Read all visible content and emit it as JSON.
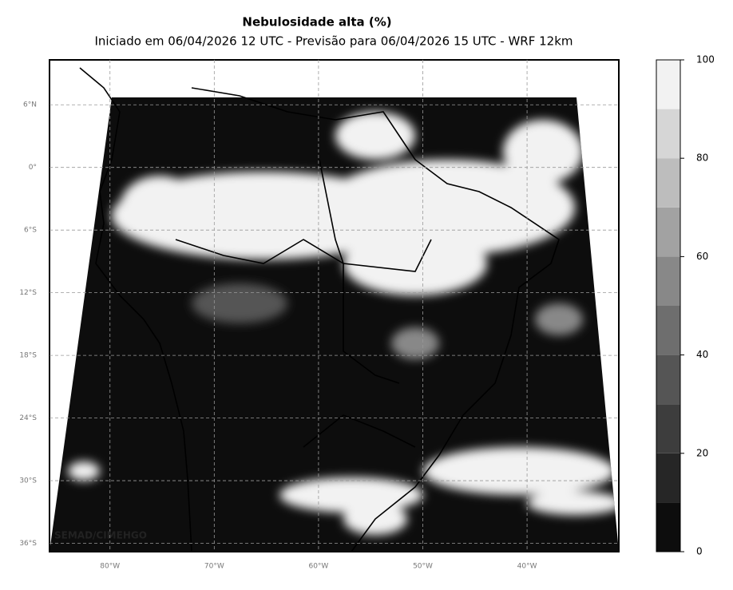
{
  "header": {
    "title": "Nebulosidade alta (%)",
    "subtitle": "Iniciado em 06/04/2026 12 UTC - Previsão para 06/04/2026 15 UTC - WRF 12km"
  },
  "map": {
    "lon_range": [
      -85.8,
      -31.2
    ],
    "lat_range": [
      -36.8,
      10.3
    ],
    "lon_ticks": [
      {
        "value": -80,
        "label": "80°W"
      },
      {
        "value": -70,
        "label": "70°W"
      },
      {
        "value": -60,
        "label": "60°W"
      },
      {
        "value": -50,
        "label": "50°W"
      },
      {
        "value": -40,
        "label": "40°W"
      }
    ],
    "lat_ticks": [
      {
        "value": 6,
        "label": "6°N"
      },
      {
        "value": 0,
        "label": "0°"
      },
      {
        "value": -6,
        "label": "6°S"
      },
      {
        "value": -12,
        "label": "12°S"
      },
      {
        "value": -18,
        "label": "18°S"
      },
      {
        "value": -24,
        "label": "24°S"
      },
      {
        "value": -30,
        "label": "30°S"
      },
      {
        "value": -36,
        "label": "36°S"
      }
    ],
    "credit": "SEMAD/CIMEHGO"
  },
  "colorbar": {
    "range": [
      0,
      100
    ],
    "ticks": [
      0,
      20,
      40,
      60,
      80,
      100
    ],
    "colors": [
      "#0d0d0d",
      "#262626",
      "#3d3d3d",
      "#555555",
      "#6e6e6e",
      "#888888",
      "#a2a2a2",
      "#bdbdbd",
      "#d6d6d6",
      "#f2f2f2"
    ]
  }
}
